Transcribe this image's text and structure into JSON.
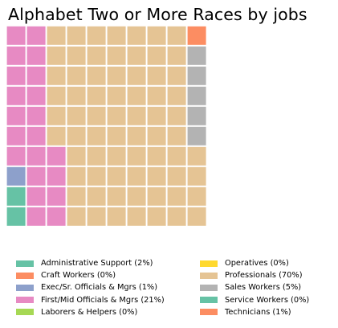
{
  "title": "Alphabet Two or More Races by jobs",
  "chart_data": {
    "type": "waffle",
    "grid": {
      "rows": 10,
      "columns": 10
    },
    "categories": [
      {
        "name": "Administrative Support",
        "label": "Administrative Support (2%)",
        "percent": 2,
        "cells": 2,
        "color": "#66c2a5"
      },
      {
        "name": "Craft Workers",
        "label": "Craft Workers (0%)",
        "percent": 0,
        "cells": 0,
        "color": "#fc8d62"
      },
      {
        "name": "Exec/Sr. Officials & Mgrs",
        "label": "Exec/Sr. Officials & Mgrs (1%)",
        "percent": 1,
        "cells": 1,
        "color": "#8da0cb"
      },
      {
        "name": "First/Mid Officials & Mgrs",
        "label": "First/Mid Officials & Mgrs (21%)",
        "percent": 21,
        "cells": 21,
        "color": "#e78ac3"
      },
      {
        "name": "Laborers & Helpers",
        "label": "Laborers & Helpers (0%)",
        "percent": 0,
        "cells": 0,
        "color": "#a6d854"
      },
      {
        "name": "Operatives",
        "label": "Operatives (0%)",
        "percent": 0,
        "cells": 0,
        "color": "#ffd92f"
      },
      {
        "name": "Professionals",
        "label": "Professionals (70%)",
        "percent": 70,
        "cells": 70,
        "color": "#e5c494"
      },
      {
        "name": "Sales Workers",
        "label": "Sales Workers (5%)",
        "percent": 5,
        "cells": 5,
        "color": "#b3b3b3"
      },
      {
        "name": "Service Workers",
        "label": "Service Workers (0%)",
        "percent": 0,
        "cells": 0,
        "color": "#66c2a5"
      },
      {
        "name": "Technicians",
        "label": "Technicians (1%)",
        "percent": 1,
        "cells": 1,
        "color": "#fc8d62"
      }
    ],
    "legend_position": "bottom"
  }
}
